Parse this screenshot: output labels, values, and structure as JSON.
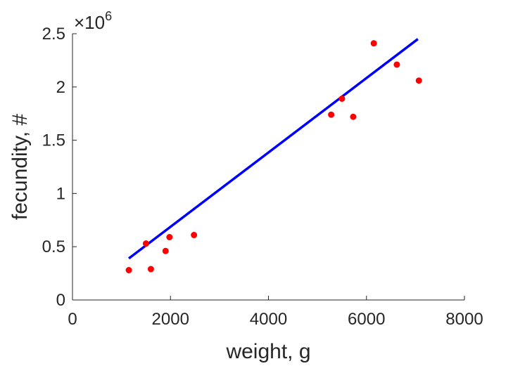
{
  "chart_data": {
    "type": "scatter",
    "xlabel": "weight, g",
    "ylabel": "fecundity, #",
    "exponent_label": {
      "prefix": "×10",
      "power": "6"
    },
    "xlim": [
      0,
      8000
    ],
    "ylim": [
      0,
      2500000
    ],
    "xticks": [
      0,
      2000,
      4000,
      6000,
      8000
    ],
    "xtick_labels": [
      "0",
      "2000",
      "4000",
      "6000",
      "8000"
    ],
    "yticks": [
      0,
      500000,
      1000000,
      1500000,
      2000000,
      2500000
    ],
    "ytick_labels": [
      "0",
      "0.5",
      "1",
      "1.5",
      "2",
      "2.5"
    ],
    "grid": false,
    "series": [
      {
        "kind": "scatter",
        "color": "#ff0000",
        "points": [
          {
            "x": 1150,
            "y": 280000
          },
          {
            "x": 1500,
            "y": 530000
          },
          {
            "x": 1600,
            "y": 290000
          },
          {
            "x": 1900,
            "y": 460000
          },
          {
            "x": 1980,
            "y": 590000
          },
          {
            "x": 2480,
            "y": 610000
          },
          {
            "x": 5280,
            "y": 1740000
          },
          {
            "x": 5500,
            "y": 1890000
          },
          {
            "x": 5730,
            "y": 1720000
          },
          {
            "x": 6150,
            "y": 2410000
          },
          {
            "x": 6620,
            "y": 2210000
          },
          {
            "x": 7070,
            "y": 2060000
          }
        ]
      },
      {
        "kind": "line",
        "color": "#0000ff",
        "points": [
          {
            "x": 1150,
            "y": 390000
          },
          {
            "x": 7050,
            "y": 2450000
          }
        ]
      }
    ]
  }
}
